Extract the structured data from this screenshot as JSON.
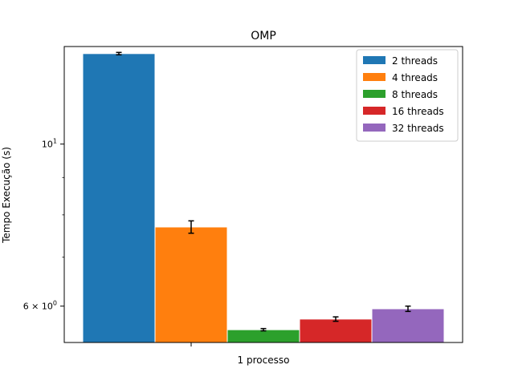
{
  "chart_data": {
    "type": "bar",
    "title": "OMP",
    "xlabel": "1 processo",
    "ylabel": "Tempo Execução (s)",
    "yscale": "log",
    "ylim": [
      5.35,
      13.6
    ],
    "yticks": [
      {
        "value": 10,
        "base": "10",
        "exp": "1"
      },
      {
        "value": 6,
        "base": "6 × 10",
        "exp": "0"
      }
    ],
    "yminor_ticks": [
      7,
      8,
      9
    ],
    "categories": [
      "1 processo"
    ],
    "series": [
      {
        "name": "2 threads",
        "color": "#1f77b4",
        "values": [
          13.3
        ],
        "err": [
          0.05
        ]
      },
      {
        "name": "4 threads",
        "color": "#ff7f0e",
        "values": [
          7.7
        ],
        "err": [
          0.15
        ]
      },
      {
        "name": "8 threads",
        "color": "#2ca02c",
        "values": [
          5.57
        ],
        "err": [
          0.02
        ]
      },
      {
        "name": "16 threads",
        "color": "#d62728",
        "values": [
          5.76
        ],
        "err": [
          0.04
        ]
      },
      {
        "name": "32 threads",
        "color": "#9467bd",
        "values": [
          5.95
        ],
        "err": [
          0.05
        ]
      }
    ],
    "legend": "top-right",
    "grid": false
  }
}
